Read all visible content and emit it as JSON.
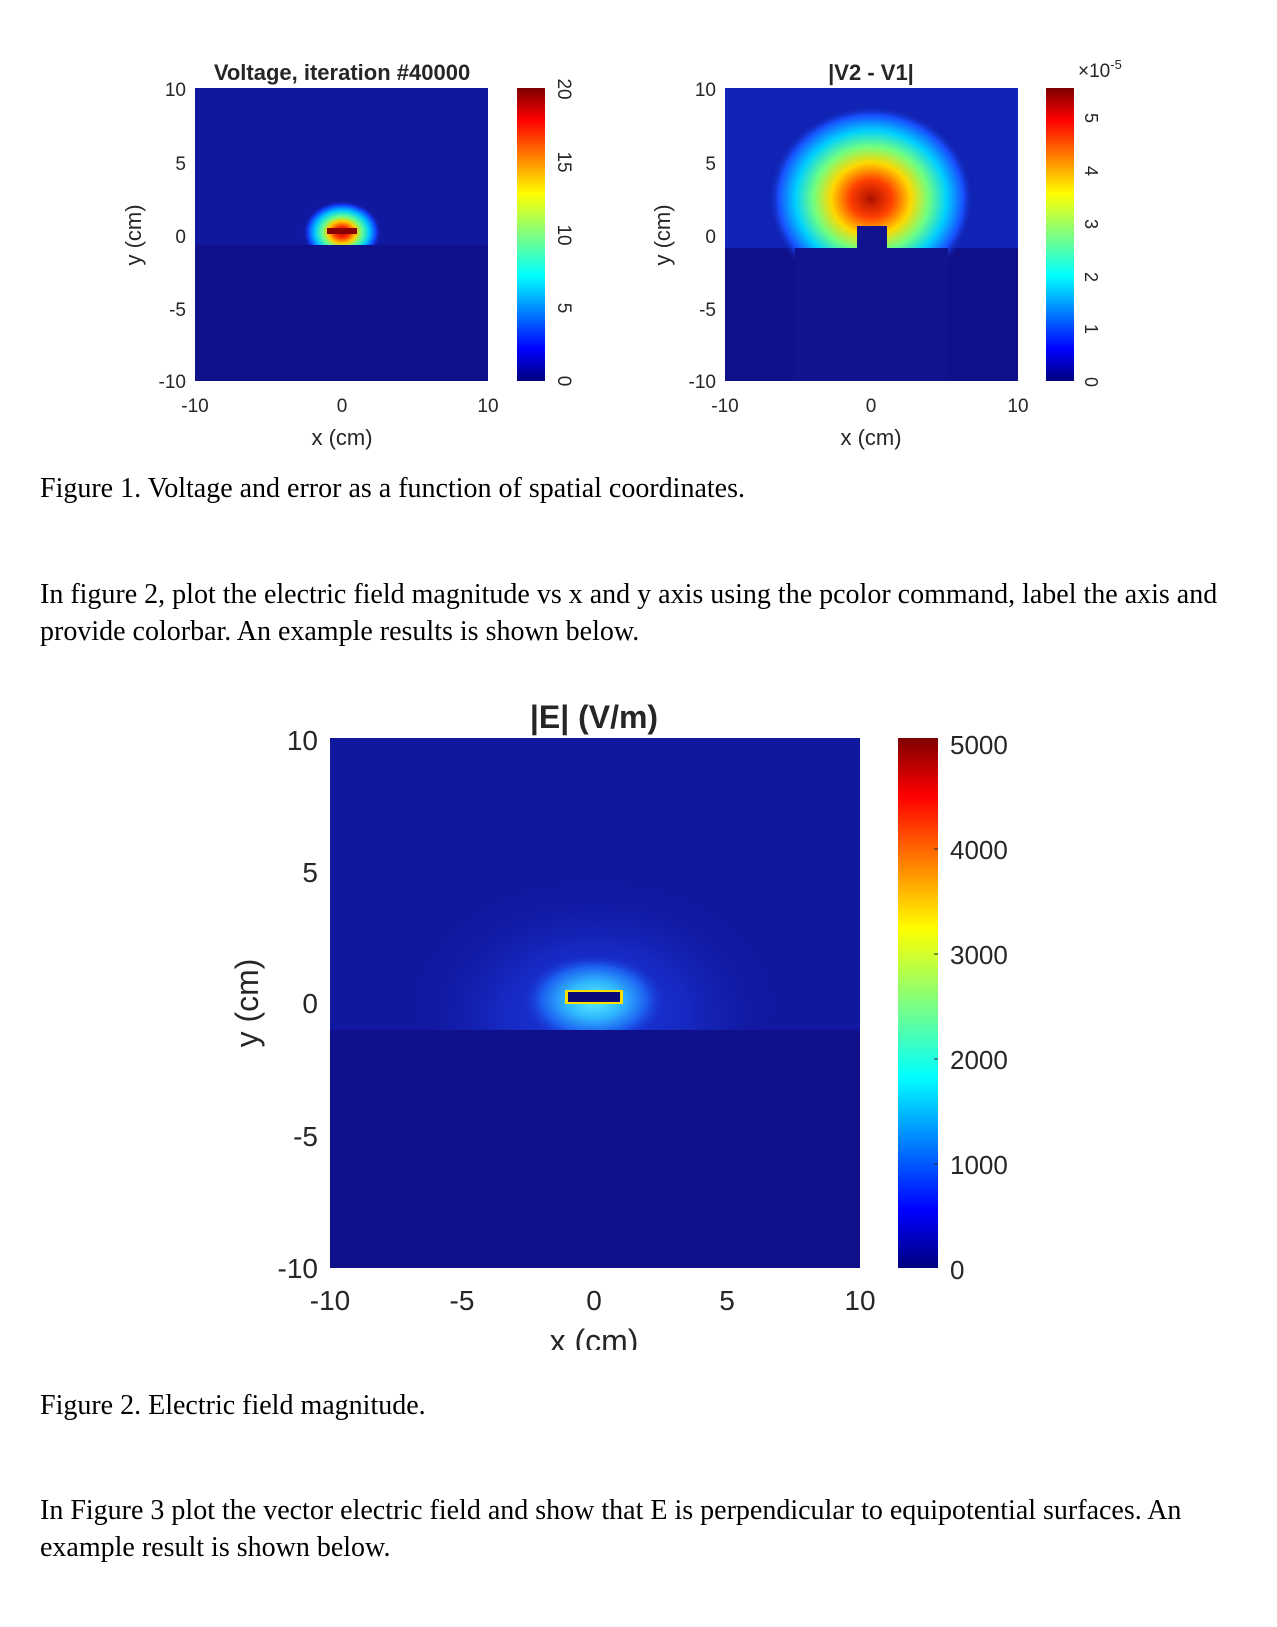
{
  "figure1": {
    "voltage_plot": {
      "title": "Voltage, iteration #40000",
      "xlabel": "x (cm)",
      "ylabel": "y (cm)",
      "xticks": [
        "-10",
        "0",
        "10"
      ],
      "yticks": [
        "10",
        "5",
        "0",
        "-5",
        "-10"
      ],
      "colorbar_ticks": [
        "20",
        "15",
        "10",
        "5",
        "0"
      ]
    },
    "error_plot": {
      "title": "|V2 - V1|",
      "xlabel": "x (cm)",
      "ylabel": "y (cm)",
      "xticks": [
        "-10",
        "0",
        "10"
      ],
      "yticks": [
        "10",
        "5",
        "0",
        "-5",
        "-10"
      ],
      "colorbar_ticks": [
        "5",
        "4",
        "3",
        "2",
        "1",
        "0"
      ],
      "colorbar_multiplier": "×10",
      "colorbar_exponent": "-5"
    },
    "caption": "Figure 1. Voltage and error as a function of spatial coordinates."
  },
  "paragraph1": "In figure 2, plot the electric field magnitude vs x and y axis using the pcolor command, label the axis and provide colorbar. An example results is shown below.",
  "figure2": {
    "title": "|E| (V/m)",
    "xlabel": "x (cm)",
    "ylabel": "y (cm)",
    "xticks": [
      "-10",
      "-5",
      "0",
      "5",
      "10"
    ],
    "yticks": [
      "10",
      "5",
      "0",
      "-5",
      "-10"
    ],
    "colorbar_ticks": [
      "5000",
      "4000",
      "3000",
      "2000",
      "1000",
      "0"
    ],
    "caption": "Figure 2. Electric field magnitude."
  },
  "paragraph2": "In Figure 3 plot the vector electric field and show that E is perpendicular to equipotential surfaces. An example result is shown below.",
  "colors": {
    "jet_low": "#00007f",
    "plot_background": "#0f108a",
    "jet_high": "#7f0000"
  }
}
